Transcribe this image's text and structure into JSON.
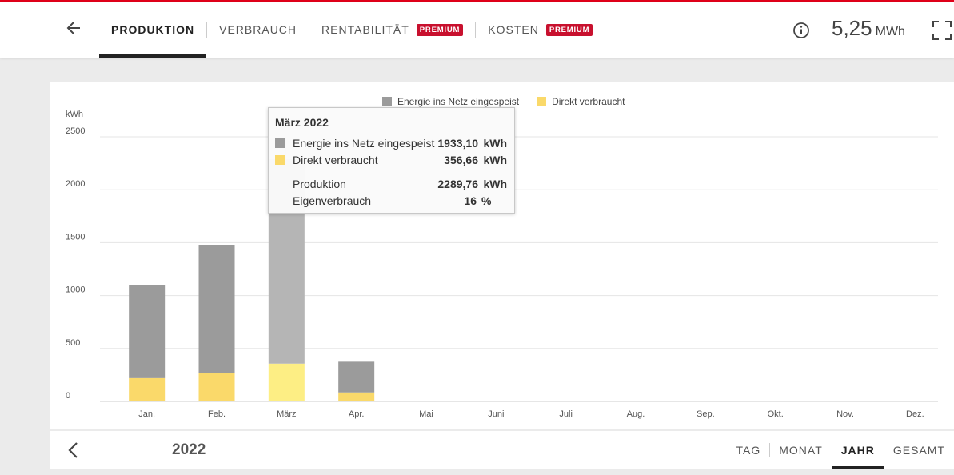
{
  "header": {
    "tabs": [
      {
        "label": "PRODUKTION",
        "badge": ""
      },
      {
        "label": "VERBRAUCH",
        "badge": ""
      },
      {
        "label": "RENTABILITÄT",
        "badge": "PREMIUM"
      },
      {
        "label": "KOSTEN",
        "badge": "PREMIUM"
      }
    ],
    "total_value": "5,25",
    "total_unit": "MWh"
  },
  "chart_data": {
    "type": "bar",
    "stacked": true,
    "ylabel": "kWh",
    "ylim": [
      0,
      2500
    ],
    "yticks": [
      "0",
      "500",
      "1000",
      "1500",
      "2000",
      "2500"
    ],
    "categories": [
      "Jan.",
      "Feb.",
      "März",
      "Apr.",
      "Mai",
      "Juni",
      "Juli",
      "Aug.",
      "Sep.",
      "Okt.",
      "Nov.",
      "Dez."
    ],
    "series": [
      {
        "name": "Direkt verbraucht",
        "color": "#fad96a",
        "highlight": "#fdee84",
        "values": [
          220,
          270,
          356.66,
          85,
          0,
          0,
          0,
          0,
          0,
          0,
          0,
          0
        ]
      },
      {
        "name": "Energie ins Netz eingespeist",
        "color": "#9b9b9b",
        "highlight": "#b5b5b5",
        "values": [
          880,
          1205,
          1933.1,
          290,
          0,
          0,
          0,
          0,
          0,
          0,
          0,
          0
        ]
      }
    ],
    "legend_position": "top-center",
    "grid": true,
    "highlighted_index": 2
  },
  "tooltip": {
    "title": "März 2022",
    "rows": [
      {
        "label": "Energie ins Netz eingespeist",
        "value": "1933,10",
        "unit": "kWh"
      },
      {
        "label": "Direkt verbraucht",
        "value": "356,66",
        "unit": "kWh"
      }
    ],
    "production_label": "Produktion",
    "production_value": "2289,76",
    "production_unit": "kWh",
    "selfuse_label": "Eigenverbrauch",
    "selfuse_value": "16",
    "selfuse_unit": "%"
  },
  "footer": {
    "year": "2022",
    "periods": [
      "TAG",
      "MONAT",
      "JAHR",
      "GESAMT"
    ],
    "active_period": "JAHR"
  },
  "colors": {
    "accent": "#e2001a",
    "badge": "#c8102e"
  },
  "icons": {
    "back": "arrow-left-icon",
    "info": "info-icon",
    "fullscreen": "fullscreen-icon",
    "prev": "chevron-left-icon"
  }
}
